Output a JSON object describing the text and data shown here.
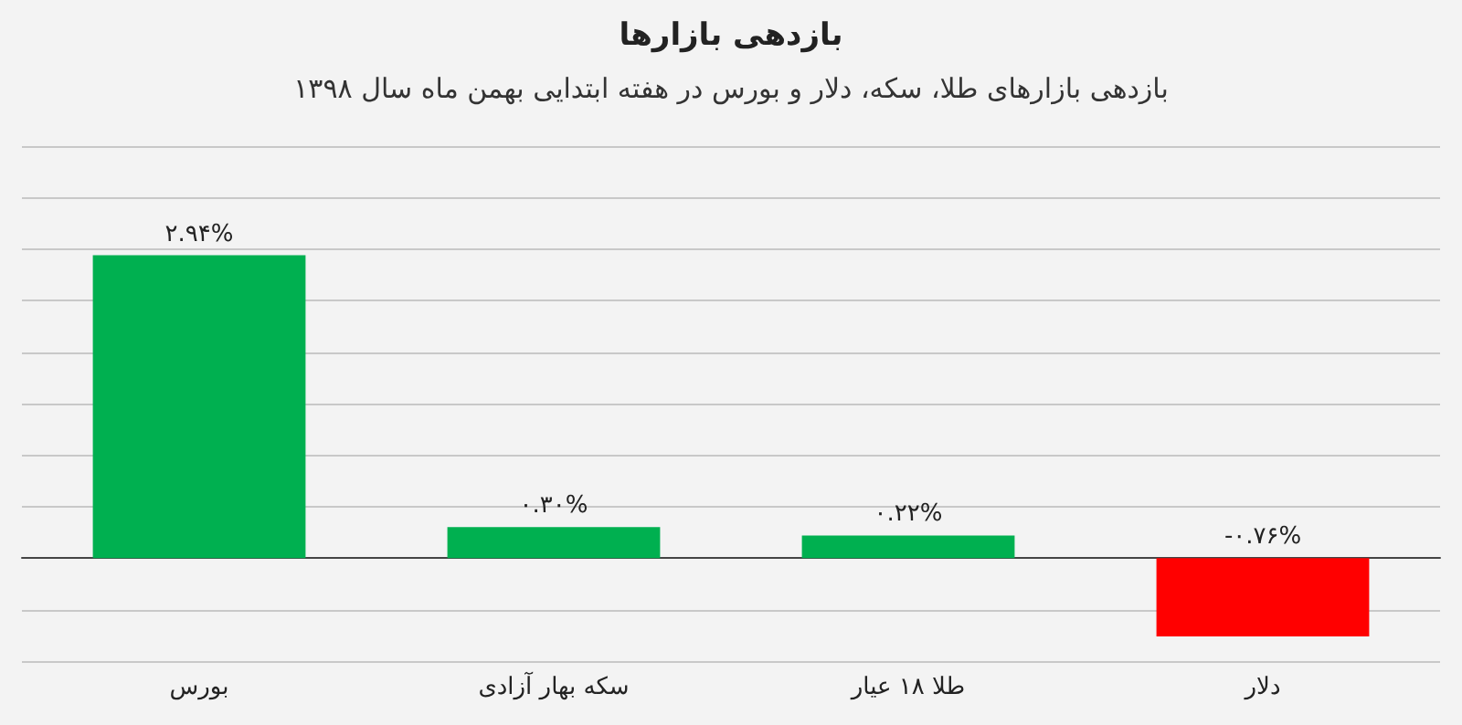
{
  "chart_data": {
    "type": "bar",
    "title": "بازدهی بازارها",
    "subtitle": "بازدهی بازارهای طلا، سکه، دلار و بورس در هفته ابتدایی بهمن ماه سال ۱۳۹۸",
    "categories": [
      "بورس",
      "سکه بهار آزادی",
      "طلا ۱۸ عیار",
      "دلار"
    ],
    "values": [
      2.94,
      0.3,
      0.22,
      -0.76
    ],
    "colors": [
      "#00b050",
      "#00b050",
      "#00b050",
      "#ff0000"
    ],
    "value_labels": [
      "۲.۹۴%",
      "۰.۳۰%",
      "۰.۲۲%",
      "-۰.۷۶%"
    ],
    "ylim": [
      -1,
      4
    ],
    "yticks": [
      {
        "value": -1,
        "label": null
      },
      {
        "value": -0.5,
        "label": null
      },
      {
        "value": 0,
        "label": null
      },
      {
        "value": 0.5,
        "label": null
      },
      {
        "value": 1,
        "label": null
      },
      {
        "value": 1.5,
        "label": null
      },
      {
        "value": 2,
        "label": null
      },
      {
        "value": 2.5,
        "label": null
      },
      {
        "value": 3,
        "label": null
      },
      {
        "value": 3.5,
        "label": null
      },
      {
        "value": 4,
        "label": null
      }
    ],
    "grid": "y",
    "tick_labels": "x"
  }
}
